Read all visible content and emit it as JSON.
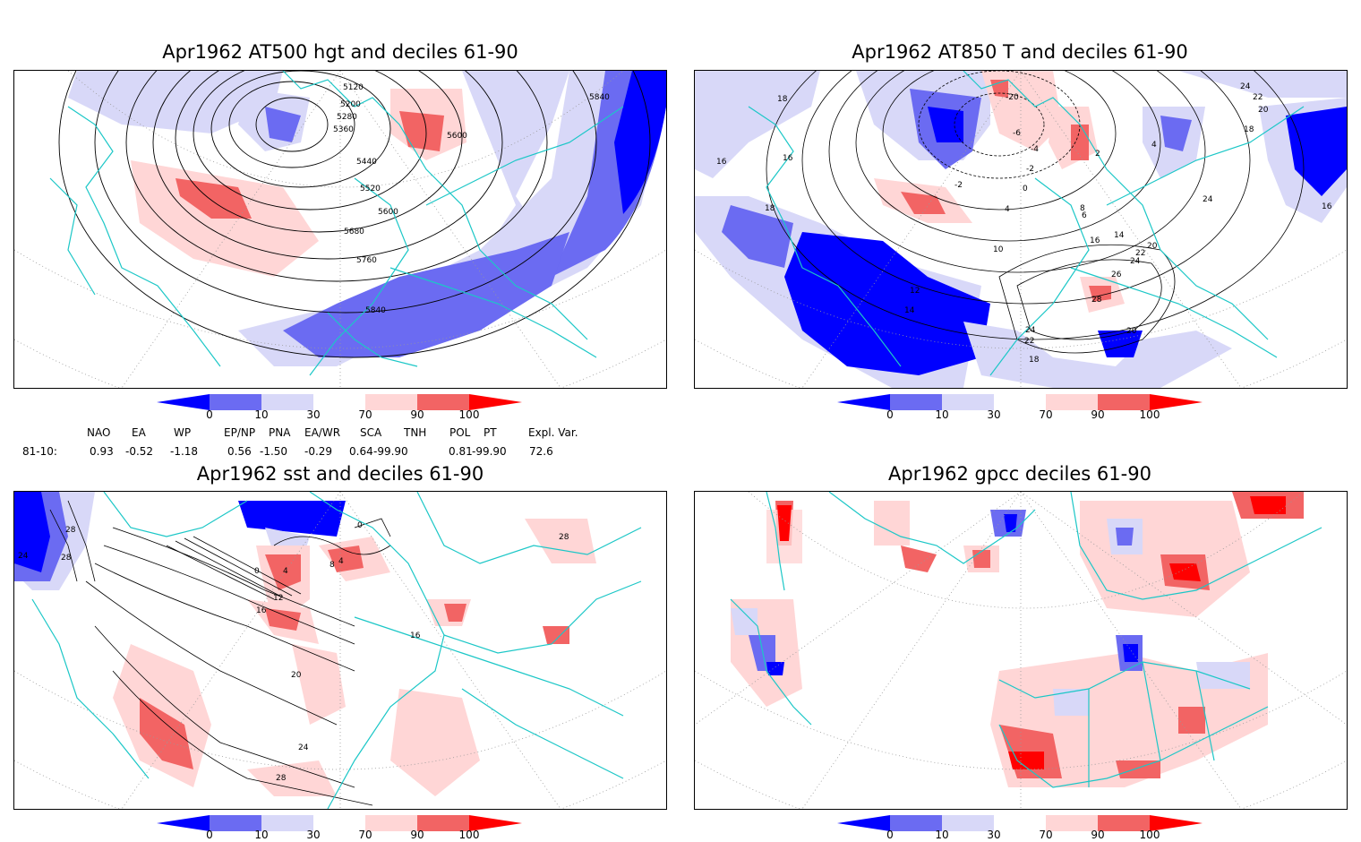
{
  "panels": [
    {
      "title": "Apr1962 AT500 hgt and deciles 61-90",
      "contour_labels": [
        "5120",
        "5200",
        "5280",
        "5360",
        "5440",
        "5520",
        "5600",
        "5600",
        "5680",
        "5760",
        "5840",
        "5840"
      ]
    },
    {
      "title": "Apr1962 AT850 T and deciles 61-90",
      "contour_labels": [
        "18",
        "16",
        "16",
        "18",
        "-20",
        "-6",
        "-4",
        "-2",
        "2",
        "0",
        "-2",
        "4",
        "6",
        "8",
        "14",
        "16",
        "10",
        "12",
        "14",
        "20",
        "22",
        "24",
        "26",
        "28",
        "24",
        "22",
        "20",
        "18",
        "24",
        "22",
        "20",
        "18",
        "16",
        "24",
        "4"
      ]
    },
    {
      "title": "Apr1962 sst and deciles 61-90",
      "contour_labels": [
        "24",
        "28",
        "28",
        "0",
        "4",
        "8",
        "4",
        "0",
        "12",
        "16",
        "16",
        "20",
        "24",
        "28",
        "28"
      ]
    },
    {
      "title": "Apr1962 gpcc deciles 61-90",
      "contour_labels": []
    }
  ],
  "colorbar": {
    "labels": [
      "0",
      "10",
      "30",
      "70",
      "90",
      "100"
    ],
    "colors": [
      "#0000ff",
      "#6b6bf2",
      "#d8d8f8",
      "#ffffff",
      "#ffd6d6",
      "#f26464",
      "#ff0000"
    ]
  },
  "indices": {
    "headers": [
      "NAO",
      "EA",
      "WP",
      "EP/NP",
      "PNA",
      "EA/WR",
      "SCA",
      "TNH",
      "POL",
      "PT",
      "Expl. Var."
    ],
    "row_label": "81-10:",
    "values": [
      "0.93",
      "-0.52",
      "-1.18",
      "0.56",
      "-1.50",
      "-0.29",
      "0.64",
      "-99.90",
      "0.81",
      "-99.90",
      "72.6"
    ]
  }
}
